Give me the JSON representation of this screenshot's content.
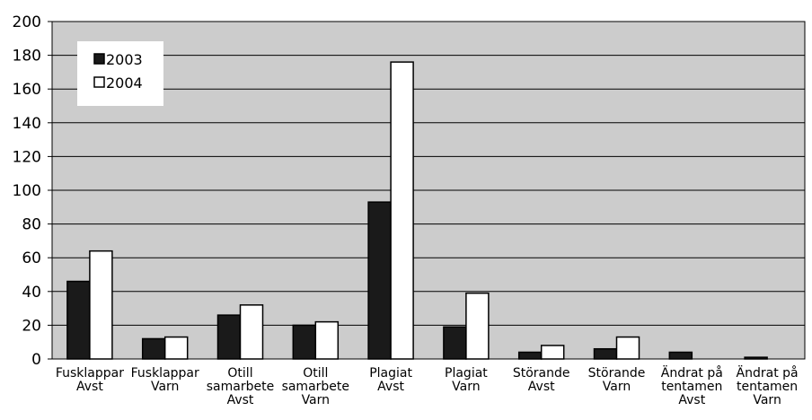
{
  "chart_data": {
    "type": "bar",
    "title": "",
    "xlabel": "",
    "ylabel": "",
    "ylim": [
      0,
      200
    ],
    "yticks": [
      0,
      20,
      40,
      60,
      80,
      100,
      120,
      140,
      160,
      180,
      200
    ],
    "grid": true,
    "legend_position": "top-left",
    "categories": [
      [
        "Fusklappar",
        "Avst"
      ],
      [
        "Fusklappar",
        "Varn"
      ],
      [
        "Otill",
        "samarbete",
        "Avst"
      ],
      [
        "Otill",
        "samarbete",
        "Varn"
      ],
      [
        "Plagiat",
        "Avst"
      ],
      [
        "Plagiat",
        "Varn"
      ],
      [
        "Störande",
        "Avst"
      ],
      [
        "Störande",
        "Varn"
      ],
      [
        "Ändrat på",
        "tentamen",
        "Avst"
      ],
      [
        "Ändrat på",
        "tentamen",
        "Varn"
      ]
    ],
    "series": [
      {
        "name": "2003",
        "color": "#1a1a1a",
        "values": [
          46,
          12,
          26,
          20,
          93,
          19,
          4,
          6,
          4,
          1
        ]
      },
      {
        "name": "2004",
        "color": "#ffffff",
        "values": [
          64,
          13,
          32,
          22,
          176,
          39,
          8,
          13,
          0,
          0
        ]
      }
    ],
    "plot_background": "#cccccc"
  }
}
